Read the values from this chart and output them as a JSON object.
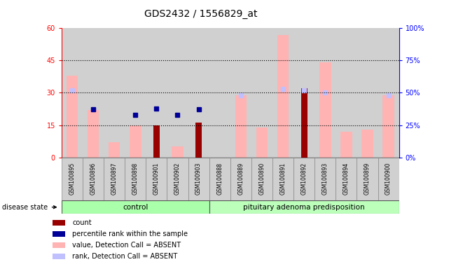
{
  "title": "GDS2432 / 1556829_at",
  "samples": [
    "GSM100895",
    "GSM100896",
    "GSM100897",
    "GSM100898",
    "GSM100901",
    "GSM100902",
    "GSM100903",
    "GSM100888",
    "GSM100889",
    "GSM100890",
    "GSM100891",
    "GSM100892",
    "GSM100893",
    "GSM100894",
    "GSM100899",
    "GSM100900"
  ],
  "control_count": 7,
  "pituitary_count": 9,
  "group_label_control": "control",
  "group_label_pituitary": "pituitary adenoma predisposition",
  "value_absent": [
    38,
    22,
    7,
    15,
    null,
    5,
    null,
    null,
    29,
    14,
    57,
    null,
    44,
    12,
    13,
    29
  ],
  "rank_absent_pct": [
    52,
    null,
    null,
    null,
    null,
    null,
    null,
    null,
    48,
    null,
    53,
    52,
    50,
    null,
    null,
    48
  ],
  "count_val": [
    null,
    null,
    null,
    null,
    15,
    null,
    16,
    null,
    null,
    null,
    null,
    32,
    null,
    null,
    null,
    null
  ],
  "percentile_pct": [
    null,
    37,
    null,
    33,
    38,
    33,
    37,
    null,
    null,
    null,
    null,
    null,
    null,
    null,
    null,
    null
  ],
  "ylim_left": [
    0,
    60
  ],
  "ylim_right": [
    0,
    100
  ],
  "yticks_left": [
    0,
    15,
    30,
    45,
    60
  ],
  "yticks_right": [
    0,
    25,
    50,
    75,
    100
  ],
  "ytick_labels_right": [
    "0%",
    "25%",
    "50%",
    "75%",
    "100%"
  ],
  "hlines": [
    15,
    30,
    45
  ],
  "color_value_absent": "#ffb3b3",
  "color_rank_absent": "#c0c0ff",
  "color_count": "#990000",
  "color_percentile": "#000099",
  "color_col_bg": "#d0d0d0",
  "color_control_bg": "#aaffaa",
  "color_pituitary_bg": "#bbffbb",
  "legend_items": [
    {
      "color": "#990000",
      "label": "count"
    },
    {
      "color": "#000099",
      "label": "percentile rank within the sample"
    },
    {
      "color": "#ffb3b3",
      "label": "value, Detection Call = ABSENT"
    },
    {
      "color": "#c0c0ff",
      "label": "rank, Detection Call = ABSENT"
    }
  ],
  "disease_state_label": "disease state"
}
